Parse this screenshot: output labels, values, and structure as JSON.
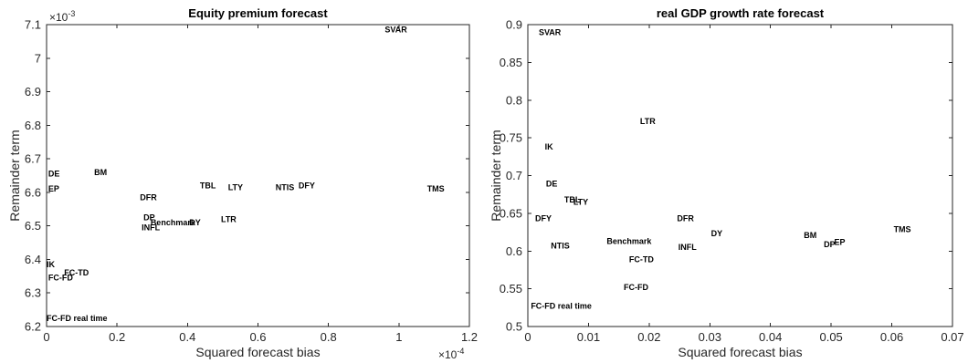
{
  "chart_data": [
    {
      "type": "scatter",
      "title": "Equity premium forecast",
      "xlabel": "Squared forecast bias",
      "ylabel": "Remainder term",
      "x_exponent": "×10",
      "x_exponent_power": "-4",
      "y_exponent": "×10",
      "y_exponent_power": "-3",
      "xlim": [
        0,
        1.2
      ],
      "ylim": [
        6.2,
        7.1
      ],
      "xticks": [
        0,
        0.2,
        0.4,
        0.6,
        0.8,
        1,
        1.2
      ],
      "yticks": [
        6.2,
        6.3,
        6.4,
        6.5,
        6.6,
        6.7,
        6.8,
        6.9,
        7,
        7.1
      ],
      "xtick_labels": [
        "0",
        "0.2",
        "0.4",
        "0.6",
        "0.8",
        "1",
        "1.2"
      ],
      "ytick_labels": [
        "6.2",
        "6.3",
        "6.4",
        "6.5",
        "6.6",
        "6.7",
        "6.8",
        "6.9",
        "7",
        "7.1"
      ],
      "points": [
        {
          "label": "SVAR",
          "x": 0.96,
          "y": 7.085
        },
        {
          "label": "DE",
          "x": 0.005,
          "y": 6.655
        },
        {
          "label": "BM",
          "x": 0.135,
          "y": 6.66
        },
        {
          "label": "EP",
          "x": 0.005,
          "y": 6.61
        },
        {
          "label": "DFR",
          "x": 0.265,
          "y": 6.585
        },
        {
          "label": "TBL",
          "x": 0.435,
          "y": 6.62
        },
        {
          "label": "LTY",
          "x": 0.515,
          "y": 6.615
        },
        {
          "label": "NTIS",
          "x": 0.65,
          "y": 6.615
        },
        {
          "label": "DFY",
          "x": 0.715,
          "y": 6.62
        },
        {
          "label": "TMS",
          "x": 1.08,
          "y": 6.61
        },
        {
          "label": "DP",
          "x": 0.275,
          "y": 6.525
        },
        {
          "label": "Benchmark",
          "x": 0.295,
          "y": 6.51
        },
        {
          "label": "DY",
          "x": 0.405,
          "y": 6.51
        },
        {
          "label": "INFL",
          "x": 0.27,
          "y": 6.495
        },
        {
          "label": "LTR",
          "x": 0.495,
          "y": 6.52
        },
        {
          "label": "IK",
          "x": 0.0,
          "y": 6.385
        },
        {
          "label": "FC-TD",
          "x": 0.05,
          "y": 6.36
        },
        {
          "label": "FC-FD",
          "x": 0.005,
          "y": 6.345
        },
        {
          "label": "FC-FD real time",
          "x": 0.0,
          "y": 6.225
        }
      ]
    },
    {
      "type": "scatter",
      "title": "real GDP growth rate forecast",
      "xlabel": "Squared forecast bias",
      "ylabel": "Remainder term",
      "xlim": [
        0,
        0.07
      ],
      "ylim": [
        0.5,
        0.9
      ],
      "xticks": [
        0,
        0.01,
        0.02,
        0.03,
        0.04,
        0.05,
        0.06,
        0.07
      ],
      "yticks": [
        0.5,
        0.55,
        0.6,
        0.65,
        0.7,
        0.75,
        0.8,
        0.85,
        0.9
      ],
      "xtick_labels": [
        "0",
        "0.01",
        "0.02",
        "0.03",
        "0.04",
        "0.05",
        "0.06",
        "0.07"
      ],
      "ytick_labels": [
        "0.5",
        "0.55",
        "0.6",
        "0.65",
        "0.7",
        "0.75",
        "0.8",
        "0.85",
        "0.9"
      ],
      "points": [
        {
          "label": "SVAR",
          "x": 0.0018,
          "y": 0.89
        },
        {
          "label": "LTR",
          "x": 0.0185,
          "y": 0.772
        },
        {
          "label": "IK",
          "x": 0.0028,
          "y": 0.738
        },
        {
          "label": "DE",
          "x": 0.003,
          "y": 0.689
        },
        {
          "label": "TBL",
          "x": 0.006,
          "y": 0.668
        },
        {
          "label": "LTY",
          "x": 0.0075,
          "y": 0.665
        },
        {
          "label": "DFY",
          "x": 0.0012,
          "y": 0.643
        },
        {
          "label": "DFR",
          "x": 0.0246,
          "y": 0.643
        },
        {
          "label": "DY",
          "x": 0.0302,
          "y": 0.623
        },
        {
          "label": "BM",
          "x": 0.0455,
          "y": 0.621
        },
        {
          "label": "TMS",
          "x": 0.0603,
          "y": 0.629
        },
        {
          "label": "DP",
          "x": 0.0488,
          "y": 0.609
        },
        {
          "label": "EP",
          "x": 0.0505,
          "y": 0.612
        },
        {
          "label": "NTIS",
          "x": 0.0038,
          "y": 0.607
        },
        {
          "label": "Benchmark",
          "x": 0.013,
          "y": 0.613
        },
        {
          "label": "INFL",
          "x": 0.0248,
          "y": 0.605
        },
        {
          "label": "FC-TD",
          "x": 0.0167,
          "y": 0.589
        },
        {
          "label": "FC-FD",
          "x": 0.0158,
          "y": 0.552
        },
        {
          "label": "FC-FD real time",
          "x": 0.0005,
          "y": 0.527
        }
      ]
    }
  ]
}
